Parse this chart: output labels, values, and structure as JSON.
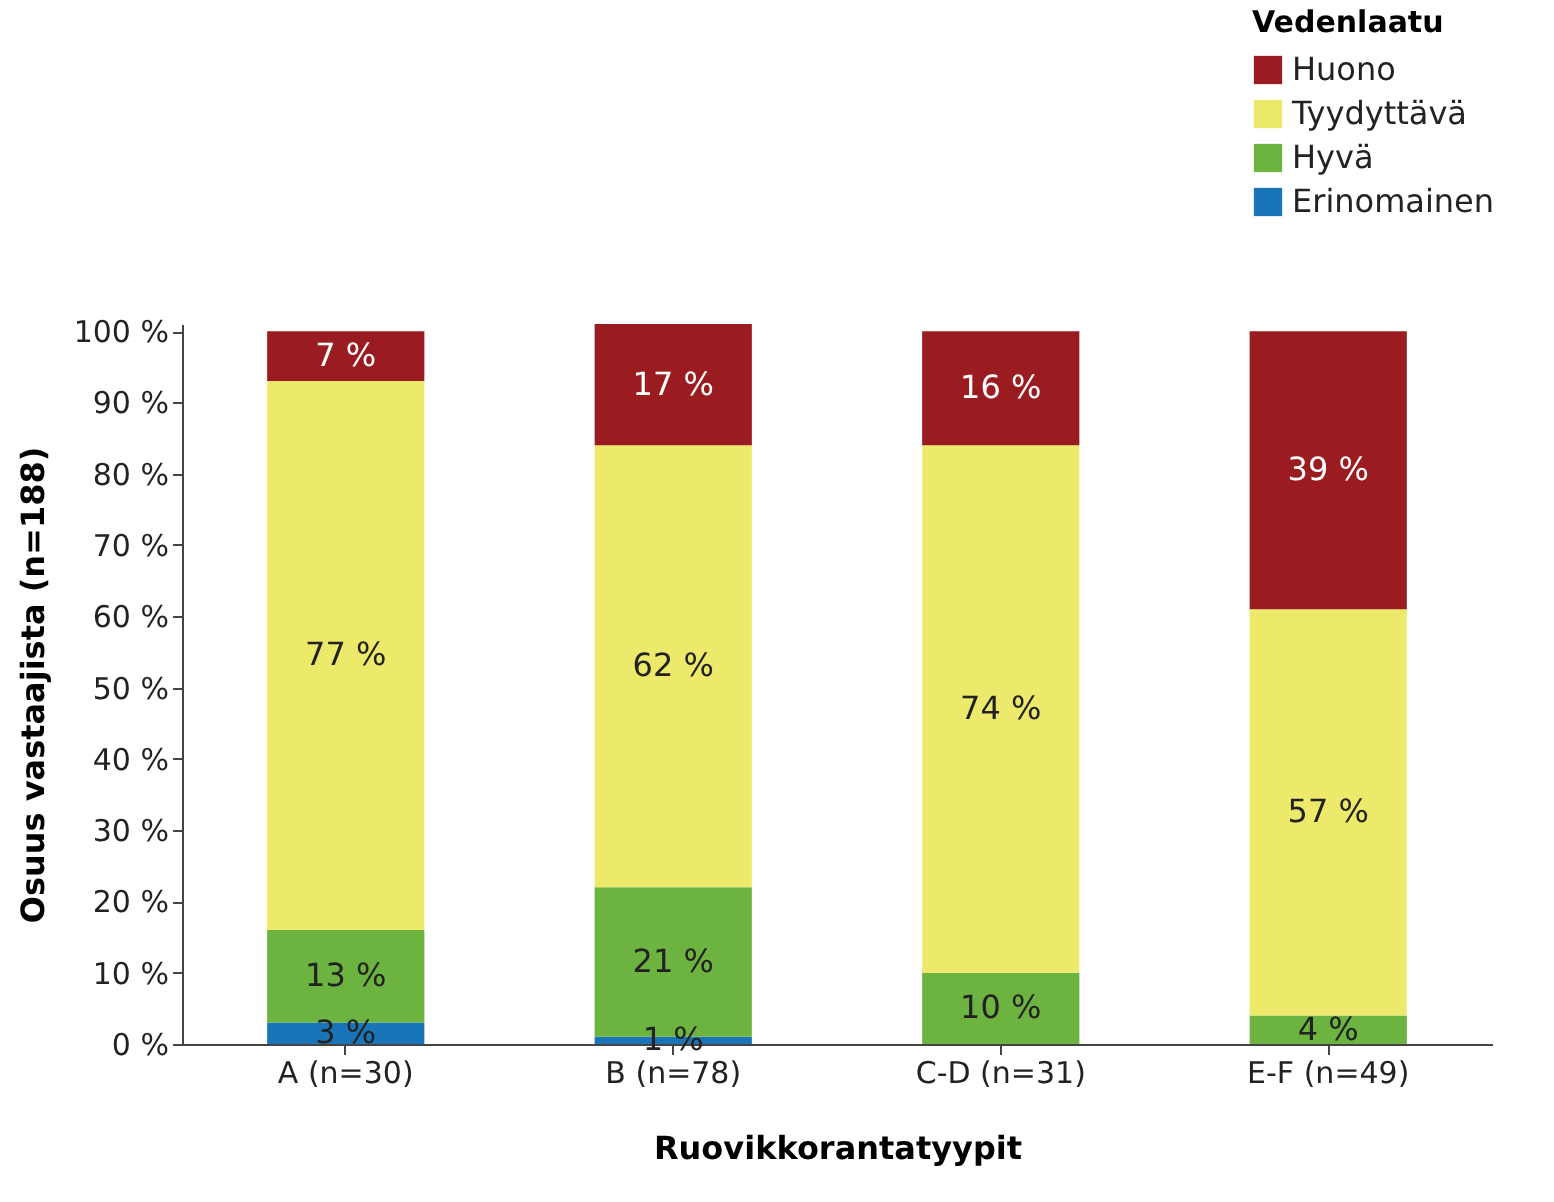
{
  "chart_data": {
    "type": "bar",
    "stacked": true,
    "xlabel": "Ruovikkorantatyypit",
    "ylabel": "Osuus vastaajista (n=188)",
    "legend_title": "Vedenlaatu",
    "legend": "top right",
    "grid": false,
    "categories": [
      "A (n=30)",
      "B (n=78)",
      "C-D (n=31)",
      "E-F (n=49)"
    ],
    "ylim": [
      0,
      101
    ],
    "yticks": [
      {
        "value": 0,
        "label": "0 %"
      },
      {
        "value": 10,
        "label": "10 %"
      },
      {
        "value": 20,
        "label": "20 %"
      },
      {
        "value": 30,
        "label": "30 %"
      },
      {
        "value": 40,
        "label": "40 %"
      },
      {
        "value": 50,
        "label": "50 %"
      },
      {
        "value": 60,
        "label": "60 %"
      },
      {
        "value": 70,
        "label": "70 %"
      },
      {
        "value": 80,
        "label": "80 %"
      },
      {
        "value": 90,
        "label": "90 %"
      },
      {
        "value": 100,
        "label": "100 %"
      }
    ],
    "series": [
      {
        "name": "Erinomainen",
        "color": "#1a75b8",
        "values": [
          3,
          1,
          null,
          null
        ],
        "value_labels": [
          "3 %",
          "1 %",
          null,
          null
        ]
      },
      {
        "name": "Hyvä",
        "color": "#6db33f",
        "values": [
          13,
          21,
          10,
          4
        ],
        "value_labels": [
          "13 %",
          "21 %",
          "10 %",
          "4 %"
        ]
      },
      {
        "name": "Tyydyttävä",
        "color": "#ede96b",
        "values": [
          77,
          62,
          74,
          57
        ],
        "value_labels": [
          "77 %",
          "62 %",
          "74 %",
          "57 %"
        ]
      },
      {
        "name": "Huono",
        "color": "#9b1c20",
        "values": [
          7,
          17,
          16,
          39
        ],
        "value_labels": [
          "7 %",
          "17 %",
          "16 %",
          "39 %"
        ]
      }
    ]
  }
}
